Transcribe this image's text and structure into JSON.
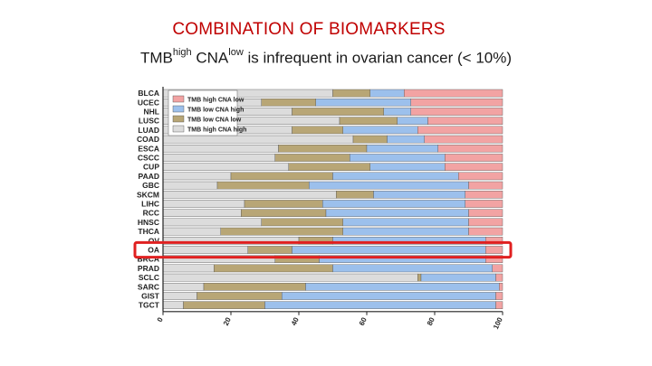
{
  "slide": {
    "title": "COMBINATION OF BIOMARKERS",
    "subtitle_pre": "TMB",
    "subtitle_sup1": "high",
    "subtitle_mid": " CNA",
    "subtitle_sup2": "low",
    "subtitle_post": " is infrequent in ovarian cancer (< 10%)"
  },
  "highlight": {
    "category": "OA",
    "color": "#e02020"
  },
  "chart_data": {
    "type": "bar",
    "orientation": "horizontal",
    "stacked": true,
    "categories": [
      "BLCA",
      "UCEC",
      "NHL",
      "LUSC",
      "LUAD",
      "COAD",
      "ESCA",
      "CSCC",
      "CUP",
      "PAAD",
      "GBC",
      "SKCM",
      "LIHC",
      "RCC",
      "HNSC",
      "THCA",
      "OV",
      "OA",
      "BRCA",
      "PRAD",
      "SCLC",
      "SARC",
      "GIST",
      "TGCT"
    ],
    "xlim": [
      0,
      100
    ],
    "xticks": [
      0,
      20,
      40,
      60,
      80,
      100
    ],
    "grid": false,
    "legend_position": "top-left",
    "series": [
      {
        "name": "TMB high CNA high",
        "color": "#dcdcdc",
        "values": [
          50,
          29,
          38,
          52,
          38,
          56,
          34,
          33,
          37,
          20,
          16,
          51,
          24,
          23,
          29,
          17,
          40,
          25,
          33,
          15,
          75,
          12,
          10,
          6
        ]
      },
      {
        "name": "TMB low CNA low",
        "color": "#b8a676",
        "values": [
          11,
          16,
          27,
          17,
          15,
          10,
          26,
          22,
          24,
          30,
          27,
          11,
          23,
          25,
          24,
          36,
          10,
          13,
          13,
          35,
          1,
          30,
          25,
          24
        ]
      },
      {
        "name": "TMB low CNA high",
        "color": "#9cc0ec",
        "values": [
          10,
          28,
          8,
          9,
          22,
          11,
          21,
          28,
          22,
          37,
          47,
          27,
          42,
          42,
          37,
          37,
          45,
          57,
          49,
          47,
          22,
          57,
          63,
          68
        ]
      },
      {
        "name": "TMB high CNA low",
        "color": "#f2a3a3",
        "values": [
          29,
          27,
          27,
          22,
          25,
          23,
          19,
          17,
          17,
          13,
          10,
          11,
          11,
          10,
          10,
          10,
          5,
          5,
          5,
          3,
          2,
          1,
          2,
          2
        ]
      }
    ]
  }
}
